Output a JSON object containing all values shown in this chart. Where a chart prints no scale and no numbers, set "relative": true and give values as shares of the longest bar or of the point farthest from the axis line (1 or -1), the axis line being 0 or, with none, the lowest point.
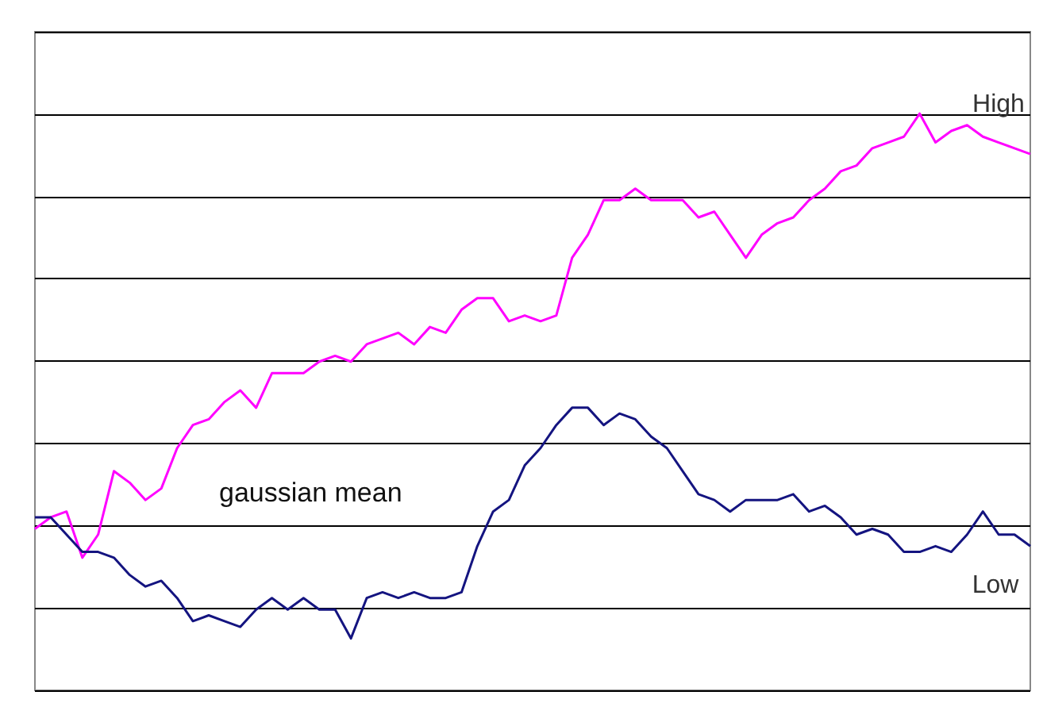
{
  "chart_data": {
    "type": "line",
    "relative": true,
    "categories": [
      null,
      null,
      null,
      null,
      null,
      null,
      null,
      null,
      null,
      null,
      null,
      null,
      null,
      null,
      null,
      null,
      null,
      null,
      null,
      null,
      null,
      null,
      null,
      null,
      null,
      null,
      null,
      null,
      null,
      null,
      null,
      null,
      null,
      null,
      null,
      null,
      null,
      null,
      null,
      null,
      null,
      null,
      null,
      null,
      null,
      null,
      null,
      null,
      null,
      null,
      null,
      null,
      null,
      null,
      null,
      null,
      null,
      null,
      null,
      null,
      null,
      null,
      null,
      null
    ],
    "series": [
      {
        "name": "High",
        "color": "#ff00ff",
        "values": [
          0.28,
          0.3,
          0.31,
          0.23,
          0.27,
          0.38,
          0.36,
          0.33,
          0.35,
          0.42,
          0.46,
          0.47,
          0.5,
          0.52,
          0.49,
          0.55,
          0.55,
          0.55,
          0.57,
          0.58,
          0.57,
          0.6,
          0.61,
          0.62,
          0.6,
          0.63,
          0.62,
          0.66,
          0.68,
          0.68,
          0.64,
          0.65,
          0.64,
          0.65,
          0.75,
          0.79,
          0.85,
          0.85,
          0.87,
          0.85,
          0.85,
          0.85,
          0.82,
          0.83,
          0.79,
          0.75,
          0.79,
          0.81,
          0.82,
          0.85,
          0.87,
          0.9,
          0.91,
          0.94,
          0.95,
          0.96,
          1,
          0.95,
          0.97,
          0.98,
          0.96,
          0.95,
          0.94,
          0.93
        ]
      },
      {
        "name": "Low",
        "color": "#141480",
        "values": [
          0.3,
          0.3,
          0.27,
          0.24,
          0.24,
          0.23,
          0.2,
          0.18,
          0.19,
          0.16,
          0.12,
          0.13,
          0.12,
          0.11,
          0.14,
          0.16,
          0.14,
          0.16,
          0.14,
          0.14,
          0.09,
          0.16,
          0.17,
          0.16,
          0.17,
          0.16,
          0.16,
          0.17,
          0.25,
          0.31,
          0.33,
          0.39,
          0.42,
          0.46,
          0.49,
          0.49,
          0.46,
          0.48,
          0.47,
          0.44,
          0.42,
          0.38,
          0.34,
          0.33,
          0.31,
          0.33,
          0.33,
          0.33,
          0.34,
          0.31,
          0.32,
          0.3,
          0.27,
          0.28,
          0.27,
          0.24,
          0.24,
          0.25,
          0.24,
          0.27,
          0.31,
          0.27,
          0.27,
          0.25
        ]
      }
    ],
    "annotations": [
      "gaussian mean"
    ],
    "grid": "y",
    "legend": false,
    "marker": "none",
    "line_style": "solid"
  }
}
